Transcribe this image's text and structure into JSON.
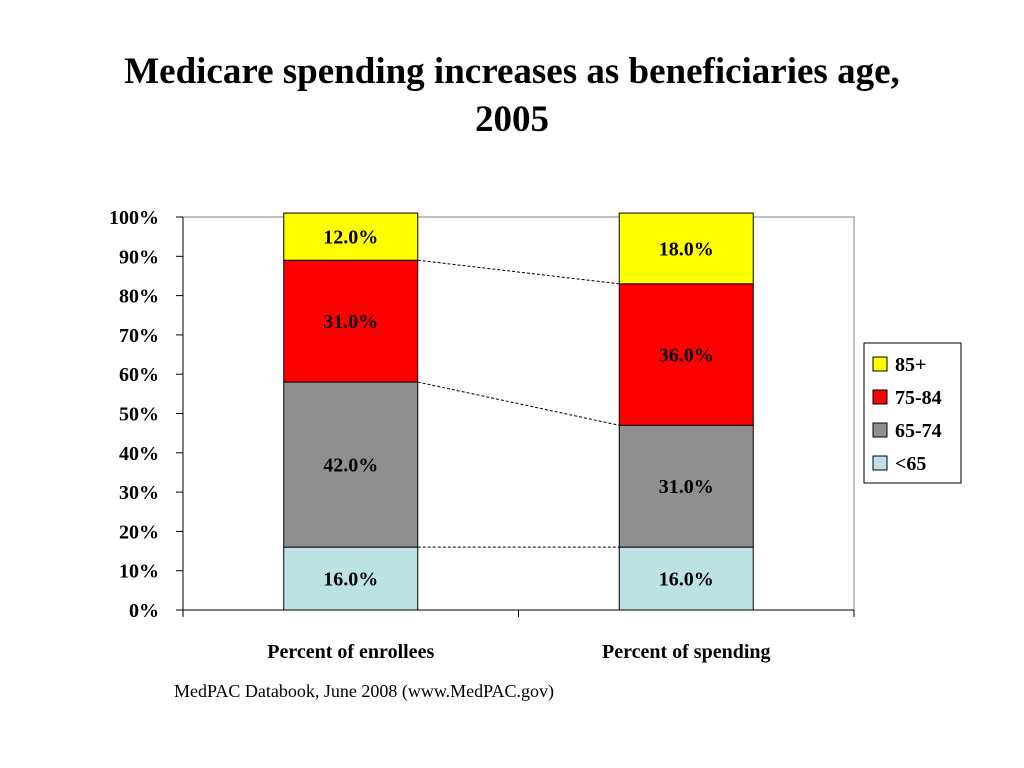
{
  "slide": {
    "title_line1": "Medicare spending increases as beneficiaries age,",
    "title_line2": "2005",
    "source": "MedPAC Databook, June 2008 (www.MedPAC.gov)"
  },
  "chart_data": {
    "type": "bar",
    "stacked": true,
    "categories": [
      "Percent of enrollees",
      "Percent of spending"
    ],
    "series": [
      {
        "name": "<65",
        "values": [
          16.0,
          16.0
        ],
        "labels": [
          "16.0%",
          "16.0%"
        ],
        "color": "#bde2e3"
      },
      {
        "name": "65-74",
        "values": [
          42.0,
          31.0
        ],
        "labels": [
          "42.0%",
          "31.0%"
        ],
        "color": "#8f8f8f"
      },
      {
        "name": "75-84",
        "values": [
          31.0,
          36.0
        ],
        "labels": [
          "31.0%",
          "36.0%"
        ],
        "color": "#ff0000"
      },
      {
        "name": "85+",
        "values": [
          12.0,
          18.0
        ],
        "labels": [
          "12.0%",
          "18.0%"
        ],
        "color": "#ffff00"
      }
    ],
    "ylim": [
      0,
      100
    ],
    "yticks": [
      "0%",
      "10%",
      "20%",
      "30%",
      "40%",
      "50%",
      "60%",
      "70%",
      "80%",
      "90%",
      "100%"
    ],
    "legend": {
      "position": "right",
      "order": [
        "85+",
        "75-84",
        "65-74",
        "<65"
      ]
    },
    "connector_lines": "dashed",
    "grid": false
  }
}
